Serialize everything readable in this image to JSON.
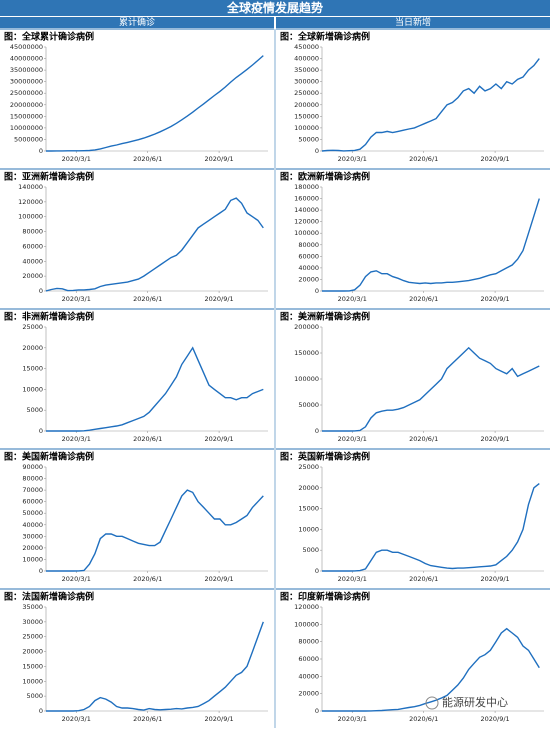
{
  "header": {
    "title": "全球疫情发展趋势",
    "left": "累计确诊",
    "right": "当日新增"
  },
  "watermark": "能源研发中心",
  "chart_data": [
    {
      "type": "line",
      "title": "图：全球累计确诊病例",
      "color": "#1f6fbf",
      "x": [
        "2020/1/22",
        "2020/1/29",
        "2020/2/5",
        "2020/2/12",
        "2020/2/19",
        "2020/2/26",
        "2020/3/4",
        "2020/3/11",
        "2020/3/18",
        "2020/3/25",
        "2020/4/1",
        "2020/4/8",
        "2020/4/15",
        "2020/4/22",
        "2020/4/29",
        "2020/5/6",
        "2020/5/13",
        "2020/5/20",
        "2020/5/27",
        "2020/6/3",
        "2020/6/10",
        "2020/6/17",
        "2020/6/24",
        "2020/7/1",
        "2020/7/8",
        "2020/7/15",
        "2020/7/22",
        "2020/7/29",
        "2020/8/5",
        "2020/8/12",
        "2020/8/19",
        "2020/8/26",
        "2020/9/2",
        "2020/9/9",
        "2020/9/16",
        "2020/9/23",
        "2020/9/30",
        "2020/10/7",
        "2020/10/14",
        "2020/10/21",
        "2020/10/28"
      ],
      "values": [
        500,
        6000,
        28000,
        60000,
        75000,
        83000,
        95000,
        125000,
        220000,
        470000,
        930000,
        1500000,
        2100000,
        2600000,
        3200000,
        3700000,
        4300000,
        4900000,
        5600000,
        6400000,
        7300000,
        8300000,
        9400000,
        10600000,
        12000000,
        13500000,
        15100000,
        16800000,
        18600000,
        20400000,
        22200000,
        24000000,
        25800000,
        27700000,
        29800000,
        31800000,
        33500000,
        35300000,
        37200000,
        39200000,
        41300000
      ],
      "xlim": [
        "2020/1/22",
        "2020/11/3"
      ],
      "xticks": [
        "2020/3/1",
        "2020/6/1",
        "2020/9/1"
      ],
      "ylim": [
        0,
        45000000
      ],
      "yticks": [
        0,
        5000000,
        10000000,
        15000000,
        20000000,
        25000000,
        30000000,
        35000000,
        40000000,
        45000000
      ]
    },
    {
      "type": "line",
      "title": "图：全球新增确诊病例",
      "color": "#1f6fbf",
      "x": [
        "2020/1/22",
        "2020/1/29",
        "2020/2/5",
        "2020/2/12",
        "2020/2/19",
        "2020/2/26",
        "2020/3/4",
        "2020/3/11",
        "2020/3/18",
        "2020/3/25",
        "2020/4/1",
        "2020/4/8",
        "2020/4/15",
        "2020/4/22",
        "2020/4/29",
        "2020/5/6",
        "2020/5/13",
        "2020/5/20",
        "2020/5/27",
        "2020/6/3",
        "2020/6/10",
        "2020/6/17",
        "2020/6/24",
        "2020/7/1",
        "2020/7/8",
        "2020/7/15",
        "2020/7/22",
        "2020/7/29",
        "2020/8/5",
        "2020/8/12",
        "2020/8/19",
        "2020/8/26",
        "2020/9/2",
        "2020/9/9",
        "2020/9/16",
        "2020/9/23",
        "2020/9/30",
        "2020/10/7",
        "2020/10/14",
        "2020/10/21",
        "2020/10/28"
      ],
      "values": [
        100,
        2000,
        3000,
        2000,
        600,
        1500,
        2500,
        8000,
        28000,
        60000,
        80000,
        80000,
        85000,
        80000,
        85000,
        90000,
        95000,
        100000,
        110000,
        120000,
        130000,
        140000,
        170000,
        200000,
        210000,
        230000,
        260000,
        270000,
        250000,
        280000,
        260000,
        270000,
        290000,
        270000,
        300000,
        290000,
        310000,
        320000,
        350000,
        370000,
        400000
      ],
      "xlim": [
        "2020/1/22",
        "2020/11/3"
      ],
      "xticks": [
        "2020/3/1",
        "2020/6/1",
        "2020/9/1"
      ],
      "ylim": [
        0,
        450000
      ],
      "yticks": [
        0,
        50000,
        100000,
        150000,
        200000,
        250000,
        300000,
        350000,
        400000,
        450000
      ]
    },
    {
      "type": "line",
      "title": "图：亚洲新增确诊病例",
      "color": "#1f6fbf",
      "x": [
        "2020/1/22",
        "2020/1/29",
        "2020/2/5",
        "2020/2/12",
        "2020/2/19",
        "2020/2/26",
        "2020/3/4",
        "2020/3/11",
        "2020/3/18",
        "2020/3/25",
        "2020/4/1",
        "2020/4/8",
        "2020/4/15",
        "2020/4/22",
        "2020/4/29",
        "2020/5/6",
        "2020/5/13",
        "2020/5/20",
        "2020/5/27",
        "2020/6/3",
        "2020/6/10",
        "2020/6/17",
        "2020/6/24",
        "2020/7/1",
        "2020/7/8",
        "2020/7/15",
        "2020/7/22",
        "2020/7/29",
        "2020/8/5",
        "2020/8/12",
        "2020/8/19",
        "2020/8/26",
        "2020/9/2",
        "2020/9/9",
        "2020/9/16",
        "2020/9/23",
        "2020/9/30",
        "2020/10/7",
        "2020/10/14",
        "2020/10/21",
        "2020/10/28"
      ],
      "values": [
        100,
        2000,
        3500,
        3000,
        500,
        800,
        1500,
        1500,
        2000,
        3000,
        6000,
        8000,
        9000,
        10000,
        11000,
        12000,
        14000,
        16000,
        20000,
        25000,
        30000,
        35000,
        40000,
        45000,
        48000,
        55000,
        65000,
        75000,
        85000,
        90000,
        95000,
        100000,
        105000,
        110000,
        122000,
        125000,
        118000,
        105000,
        100000,
        95000,
        85000
      ],
      "xlim": [
        "2020/1/22",
        "2020/11/3"
      ],
      "xticks": [
        "2020/3/1",
        "2020/6/1",
        "2020/9/1"
      ],
      "ylim": [
        0,
        140000
      ],
      "yticks": [
        0,
        20000,
        40000,
        60000,
        80000,
        100000,
        120000,
        140000
      ]
    },
    {
      "type": "line",
      "title": "图：欧洲新增确诊病例",
      "color": "#1f6fbf",
      "x": [
        "2020/1/22",
        "2020/1/29",
        "2020/2/5",
        "2020/2/12",
        "2020/2/19",
        "2020/2/26",
        "2020/3/4",
        "2020/3/11",
        "2020/3/18",
        "2020/3/25",
        "2020/4/1",
        "2020/4/8",
        "2020/4/15",
        "2020/4/22",
        "2020/4/29",
        "2020/5/6",
        "2020/5/13",
        "2020/5/20",
        "2020/5/27",
        "2020/6/3",
        "2020/6/10",
        "2020/6/17",
        "2020/6/24",
        "2020/7/1",
        "2020/7/8",
        "2020/7/15",
        "2020/7/22",
        "2020/7/29",
        "2020/8/5",
        "2020/8/12",
        "2020/8/19",
        "2020/8/26",
        "2020/9/2",
        "2020/9/9",
        "2020/9/16",
        "2020/9/23",
        "2020/9/30",
        "2020/10/7",
        "2020/10/14",
        "2020/10/21",
        "2020/10/28"
      ],
      "values": [
        0,
        0,
        0,
        0,
        0,
        200,
        2000,
        10000,
        25000,
        33000,
        35000,
        30000,
        30000,
        25000,
        22000,
        18000,
        15000,
        14000,
        13000,
        14000,
        13000,
        14000,
        14000,
        15000,
        15000,
        16000,
        17000,
        18000,
        20000,
        22000,
        25000,
        28000,
        30000,
        35000,
        40000,
        45000,
        55000,
        70000,
        100000,
        130000,
        160000
      ],
      "xlim": [
        "2020/1/22",
        "2020/11/3"
      ],
      "xticks": [
        "2020/3/1",
        "2020/6/1",
        "2020/9/1"
      ],
      "ylim": [
        0,
        180000
      ],
      "yticks": [
        0,
        20000,
        40000,
        60000,
        80000,
        100000,
        120000,
        140000,
        160000,
        180000
      ]
    },
    {
      "type": "line",
      "title": "图：非洲新增确诊病例",
      "color": "#1f6fbf",
      "x": [
        "2020/1/22",
        "2020/1/29",
        "2020/2/5",
        "2020/2/12",
        "2020/2/19",
        "2020/2/26",
        "2020/3/4",
        "2020/3/11",
        "2020/3/18",
        "2020/3/25",
        "2020/4/1",
        "2020/4/8",
        "2020/4/15",
        "2020/4/22",
        "2020/4/29",
        "2020/5/6",
        "2020/5/13",
        "2020/5/20",
        "2020/5/27",
        "2020/6/3",
        "2020/6/10",
        "2020/6/17",
        "2020/6/24",
        "2020/7/1",
        "2020/7/8",
        "2020/7/15",
        "2020/7/22",
        "2020/7/29",
        "2020/8/5",
        "2020/8/12",
        "2020/8/19",
        "2020/8/26",
        "2020/9/2",
        "2020/9/9",
        "2020/9/16",
        "2020/9/23",
        "2020/9/30",
        "2020/10/7",
        "2020/10/14",
        "2020/10/21",
        "2020/10/28"
      ],
      "values": [
        0,
        0,
        0,
        0,
        0,
        0,
        10,
        50,
        200,
        400,
        600,
        800,
        1000,
        1200,
        1500,
        2000,
        2500,
        3000,
        3500,
        4500,
        6000,
        7500,
        9000,
        11000,
        13000,
        16000,
        18000,
        20000,
        17000,
        14000,
        11000,
        10000,
        9000,
        8000,
        8000,
        7500,
        8000,
        8000,
        9000,
        9500,
        10000
      ],
      "xlim": [
        "2020/1/22",
        "2020/11/3"
      ],
      "xticks": [
        "2020/3/1",
        "2020/6/1",
        "2020/9/1"
      ],
      "ylim": [
        0,
        25000
      ],
      "yticks": [
        0,
        5000,
        10000,
        15000,
        20000,
        25000
      ]
    },
    {
      "type": "line",
      "title": "图：美洲新增确诊病例",
      "color": "#1f6fbf",
      "x": [
        "2020/1/22",
        "2020/1/29",
        "2020/2/5",
        "2020/2/12",
        "2020/2/19",
        "2020/2/26",
        "2020/3/4",
        "2020/3/11",
        "2020/3/18",
        "2020/3/25",
        "2020/4/1",
        "2020/4/8",
        "2020/4/15",
        "2020/4/22",
        "2020/4/29",
        "2020/5/6",
        "2020/5/13",
        "2020/5/20",
        "2020/5/27",
        "2020/6/3",
        "2020/6/10",
        "2020/6/17",
        "2020/6/24",
        "2020/7/1",
        "2020/7/8",
        "2020/7/15",
        "2020/7/22",
        "2020/7/29",
        "2020/8/5",
        "2020/8/12",
        "2020/8/19",
        "2020/8/26",
        "2020/9/2",
        "2020/9/9",
        "2020/9/16",
        "2020/9/23",
        "2020/9/30",
        "2020/10/7",
        "2020/10/14",
        "2020/10/21",
        "2020/10/28"
      ],
      "values": [
        0,
        0,
        0,
        0,
        0,
        0,
        100,
        1000,
        8000,
        25000,
        35000,
        38000,
        40000,
        40000,
        42000,
        45000,
        50000,
        55000,
        60000,
        70000,
        80000,
        90000,
        100000,
        120000,
        130000,
        140000,
        150000,
        160000,
        150000,
        140000,
        135000,
        130000,
        120000,
        115000,
        110000,
        120000,
        105000,
        110000,
        115000,
        120000,
        125000
      ],
      "xlim": [
        "2020/1/22",
        "2020/11/3"
      ],
      "xticks": [
        "2020/3/1",
        "2020/6/1",
        "2020/9/1"
      ],
      "ylim": [
        0,
        200000
      ],
      "yticks": [
        0,
        50000,
        100000,
        150000,
        200000
      ]
    },
    {
      "type": "line",
      "title": "图：美国新增确诊病例",
      "color": "#1f6fbf",
      "x": [
        "2020/1/22",
        "2020/1/29",
        "2020/2/5",
        "2020/2/12",
        "2020/2/19",
        "2020/2/26",
        "2020/3/4",
        "2020/3/11",
        "2020/3/18",
        "2020/3/25",
        "2020/4/1",
        "2020/4/8",
        "2020/4/15",
        "2020/4/22",
        "2020/4/29",
        "2020/5/6",
        "2020/5/13",
        "2020/5/20",
        "2020/5/27",
        "2020/6/3",
        "2020/6/10",
        "2020/6/17",
        "2020/6/24",
        "2020/7/1",
        "2020/7/8",
        "2020/7/15",
        "2020/7/22",
        "2020/7/29",
        "2020/8/5",
        "2020/8/12",
        "2020/8/19",
        "2020/8/26",
        "2020/9/2",
        "2020/9/9",
        "2020/9/16",
        "2020/9/23",
        "2020/9/30",
        "2020/10/7",
        "2020/10/14",
        "2020/10/21",
        "2020/10/28"
      ],
      "values": [
        0,
        0,
        0,
        0,
        0,
        0,
        100,
        500,
        6000,
        15000,
        28000,
        32000,
        32000,
        30000,
        30000,
        28000,
        26000,
        24000,
        23000,
        22000,
        22000,
        25000,
        35000,
        45000,
        55000,
        65000,
        70000,
        68000,
        60000,
        55000,
        50000,
        45000,
        45000,
        40000,
        40000,
        42000,
        45000,
        48000,
        55000,
        60000,
        65000
      ],
      "xlim": [
        "2020/1/22",
        "2020/11/3"
      ],
      "xticks": [
        "2020/3/1",
        "2020/6/1",
        "2020/9/1"
      ],
      "ylim": [
        0,
        90000
      ],
      "yticks": [
        0,
        10000,
        20000,
        30000,
        40000,
        50000,
        60000,
        70000,
        80000,
        90000
      ]
    },
    {
      "type": "line",
      "title": "图：英国新增确诊病例",
      "color": "#1f6fbf",
      "x": [
        "2020/1/22",
        "2020/1/29",
        "2020/2/5",
        "2020/2/12",
        "2020/2/19",
        "2020/2/26",
        "2020/3/4",
        "2020/3/11",
        "2020/3/18",
        "2020/3/25",
        "2020/4/1",
        "2020/4/8",
        "2020/4/15",
        "2020/4/22",
        "2020/4/29",
        "2020/5/6",
        "2020/5/13",
        "2020/5/20",
        "2020/5/27",
        "2020/6/3",
        "2020/6/10",
        "2020/6/17",
        "2020/6/24",
        "2020/7/1",
        "2020/7/8",
        "2020/7/15",
        "2020/7/22",
        "2020/7/29",
        "2020/8/5",
        "2020/8/12",
        "2020/8/19",
        "2020/8/26",
        "2020/9/2",
        "2020/9/9",
        "2020/9/16",
        "2020/9/23",
        "2020/9/30",
        "2020/10/7",
        "2020/10/14",
        "2020/10/21",
        "2020/10/28"
      ],
      "values": [
        0,
        0,
        0,
        0,
        0,
        0,
        20,
        100,
        500,
        2500,
        4500,
        5000,
        5000,
        4500,
        4500,
        4000,
        3500,
        3000,
        2500,
        1800,
        1300,
        1100,
        900,
        700,
        600,
        700,
        700,
        800,
        900,
        1000,
        1100,
        1200,
        1500,
        2500,
        3500,
        5000,
        7000,
        10000,
        16000,
        20000,
        21000
      ],
      "xlim": [
        "2020/1/22",
        "2020/11/3"
      ],
      "xticks": [
        "2020/3/1",
        "2020/6/1",
        "2020/9/1"
      ],
      "ylim": [
        0,
        25000
      ],
      "yticks": [
        0,
        5000,
        10000,
        15000,
        20000,
        25000
      ]
    },
    {
      "type": "line",
      "title": "图：法国新增确诊病例",
      "color": "#1f6fbf",
      "x": [
        "2020/1/22",
        "2020/1/29",
        "2020/2/5",
        "2020/2/12",
        "2020/2/19",
        "2020/2/26",
        "2020/3/4",
        "2020/3/11",
        "2020/3/18",
        "2020/3/25",
        "2020/4/1",
        "2020/4/8",
        "2020/4/15",
        "2020/4/22",
        "2020/4/29",
        "2020/5/6",
        "2020/5/13",
        "2020/5/20",
        "2020/5/27",
        "2020/6/3",
        "2020/6/10",
        "2020/6/17",
        "2020/6/24",
        "2020/7/1",
        "2020/7/8",
        "2020/7/15",
        "2020/7/22",
        "2020/7/29",
        "2020/8/5",
        "2020/8/12",
        "2020/8/19",
        "2020/8/26",
        "2020/9/2",
        "2020/9/9",
        "2020/9/16",
        "2020/9/23",
        "2020/9/30",
        "2020/10/7",
        "2020/10/14",
        "2020/10/21",
        "2020/10/28"
      ],
      "values": [
        0,
        0,
        0,
        0,
        0,
        0,
        100,
        500,
        1500,
        3500,
        4500,
        4000,
        3000,
        1500,
        1000,
        1000,
        800,
        500,
        300,
        800,
        500,
        400,
        500,
        600,
        800,
        700,
        1000,
        1200,
        1500,
        2500,
        3500,
        5000,
        6500,
        8000,
        10000,
        12000,
        13000,
        15000,
        20000,
        25000,
        30000
      ],
      "xlim": [
        "2020/1/22",
        "2020/11/3"
      ],
      "xticks": [
        "2020/3/1",
        "2020/6/1",
        "2020/9/1"
      ],
      "ylim": [
        0,
        35000
      ],
      "yticks": [
        0,
        5000,
        10000,
        15000,
        20000,
        25000,
        30000,
        35000
      ]
    },
    {
      "type": "line",
      "title": "图：印度新增确诊病例",
      "color": "#1f6fbf",
      "x": [
        "2020/1/22",
        "2020/1/29",
        "2020/2/5",
        "2020/2/12",
        "2020/2/19",
        "2020/2/26",
        "2020/3/4",
        "2020/3/11",
        "2020/3/18",
        "2020/3/25",
        "2020/4/1",
        "2020/4/8",
        "2020/4/15",
        "2020/4/22",
        "2020/4/29",
        "2020/5/6",
        "2020/5/13",
        "2020/5/20",
        "2020/5/27",
        "2020/6/3",
        "2020/6/10",
        "2020/6/17",
        "2020/6/24",
        "2020/7/1",
        "2020/7/8",
        "2020/7/15",
        "2020/7/22",
        "2020/7/29",
        "2020/8/5",
        "2020/8/12",
        "2020/8/19",
        "2020/8/26",
        "2020/9/2",
        "2020/9/9",
        "2020/9/16",
        "2020/9/23",
        "2020/9/30",
        "2020/10/7",
        "2020/10/14",
        "2020/10/21",
        "2020/10/28"
      ],
      "values": [
        0,
        0,
        0,
        0,
        0,
        0,
        0,
        10,
        50,
        100,
        300,
        600,
        1000,
        1500,
        1800,
        3000,
        4000,
        5000,
        6500,
        8500,
        10500,
        12500,
        15000,
        18000,
        24000,
        30000,
        38000,
        48000,
        55000,
        62000,
        65000,
        70000,
        80000,
        90000,
        95000,
        90000,
        85000,
        75000,
        70000,
        60000,
        50000
      ],
      "xlim": [
        "2020/1/22",
        "2020/11/3"
      ],
      "xticks": [
        "2020/3/1",
        "2020/6/1",
        "2020/9/1"
      ],
      "ylim": [
        0,
        120000
      ],
      "yticks": [
        0,
        20000,
        40000,
        60000,
        80000,
        100000,
        120000
      ]
    }
  ]
}
